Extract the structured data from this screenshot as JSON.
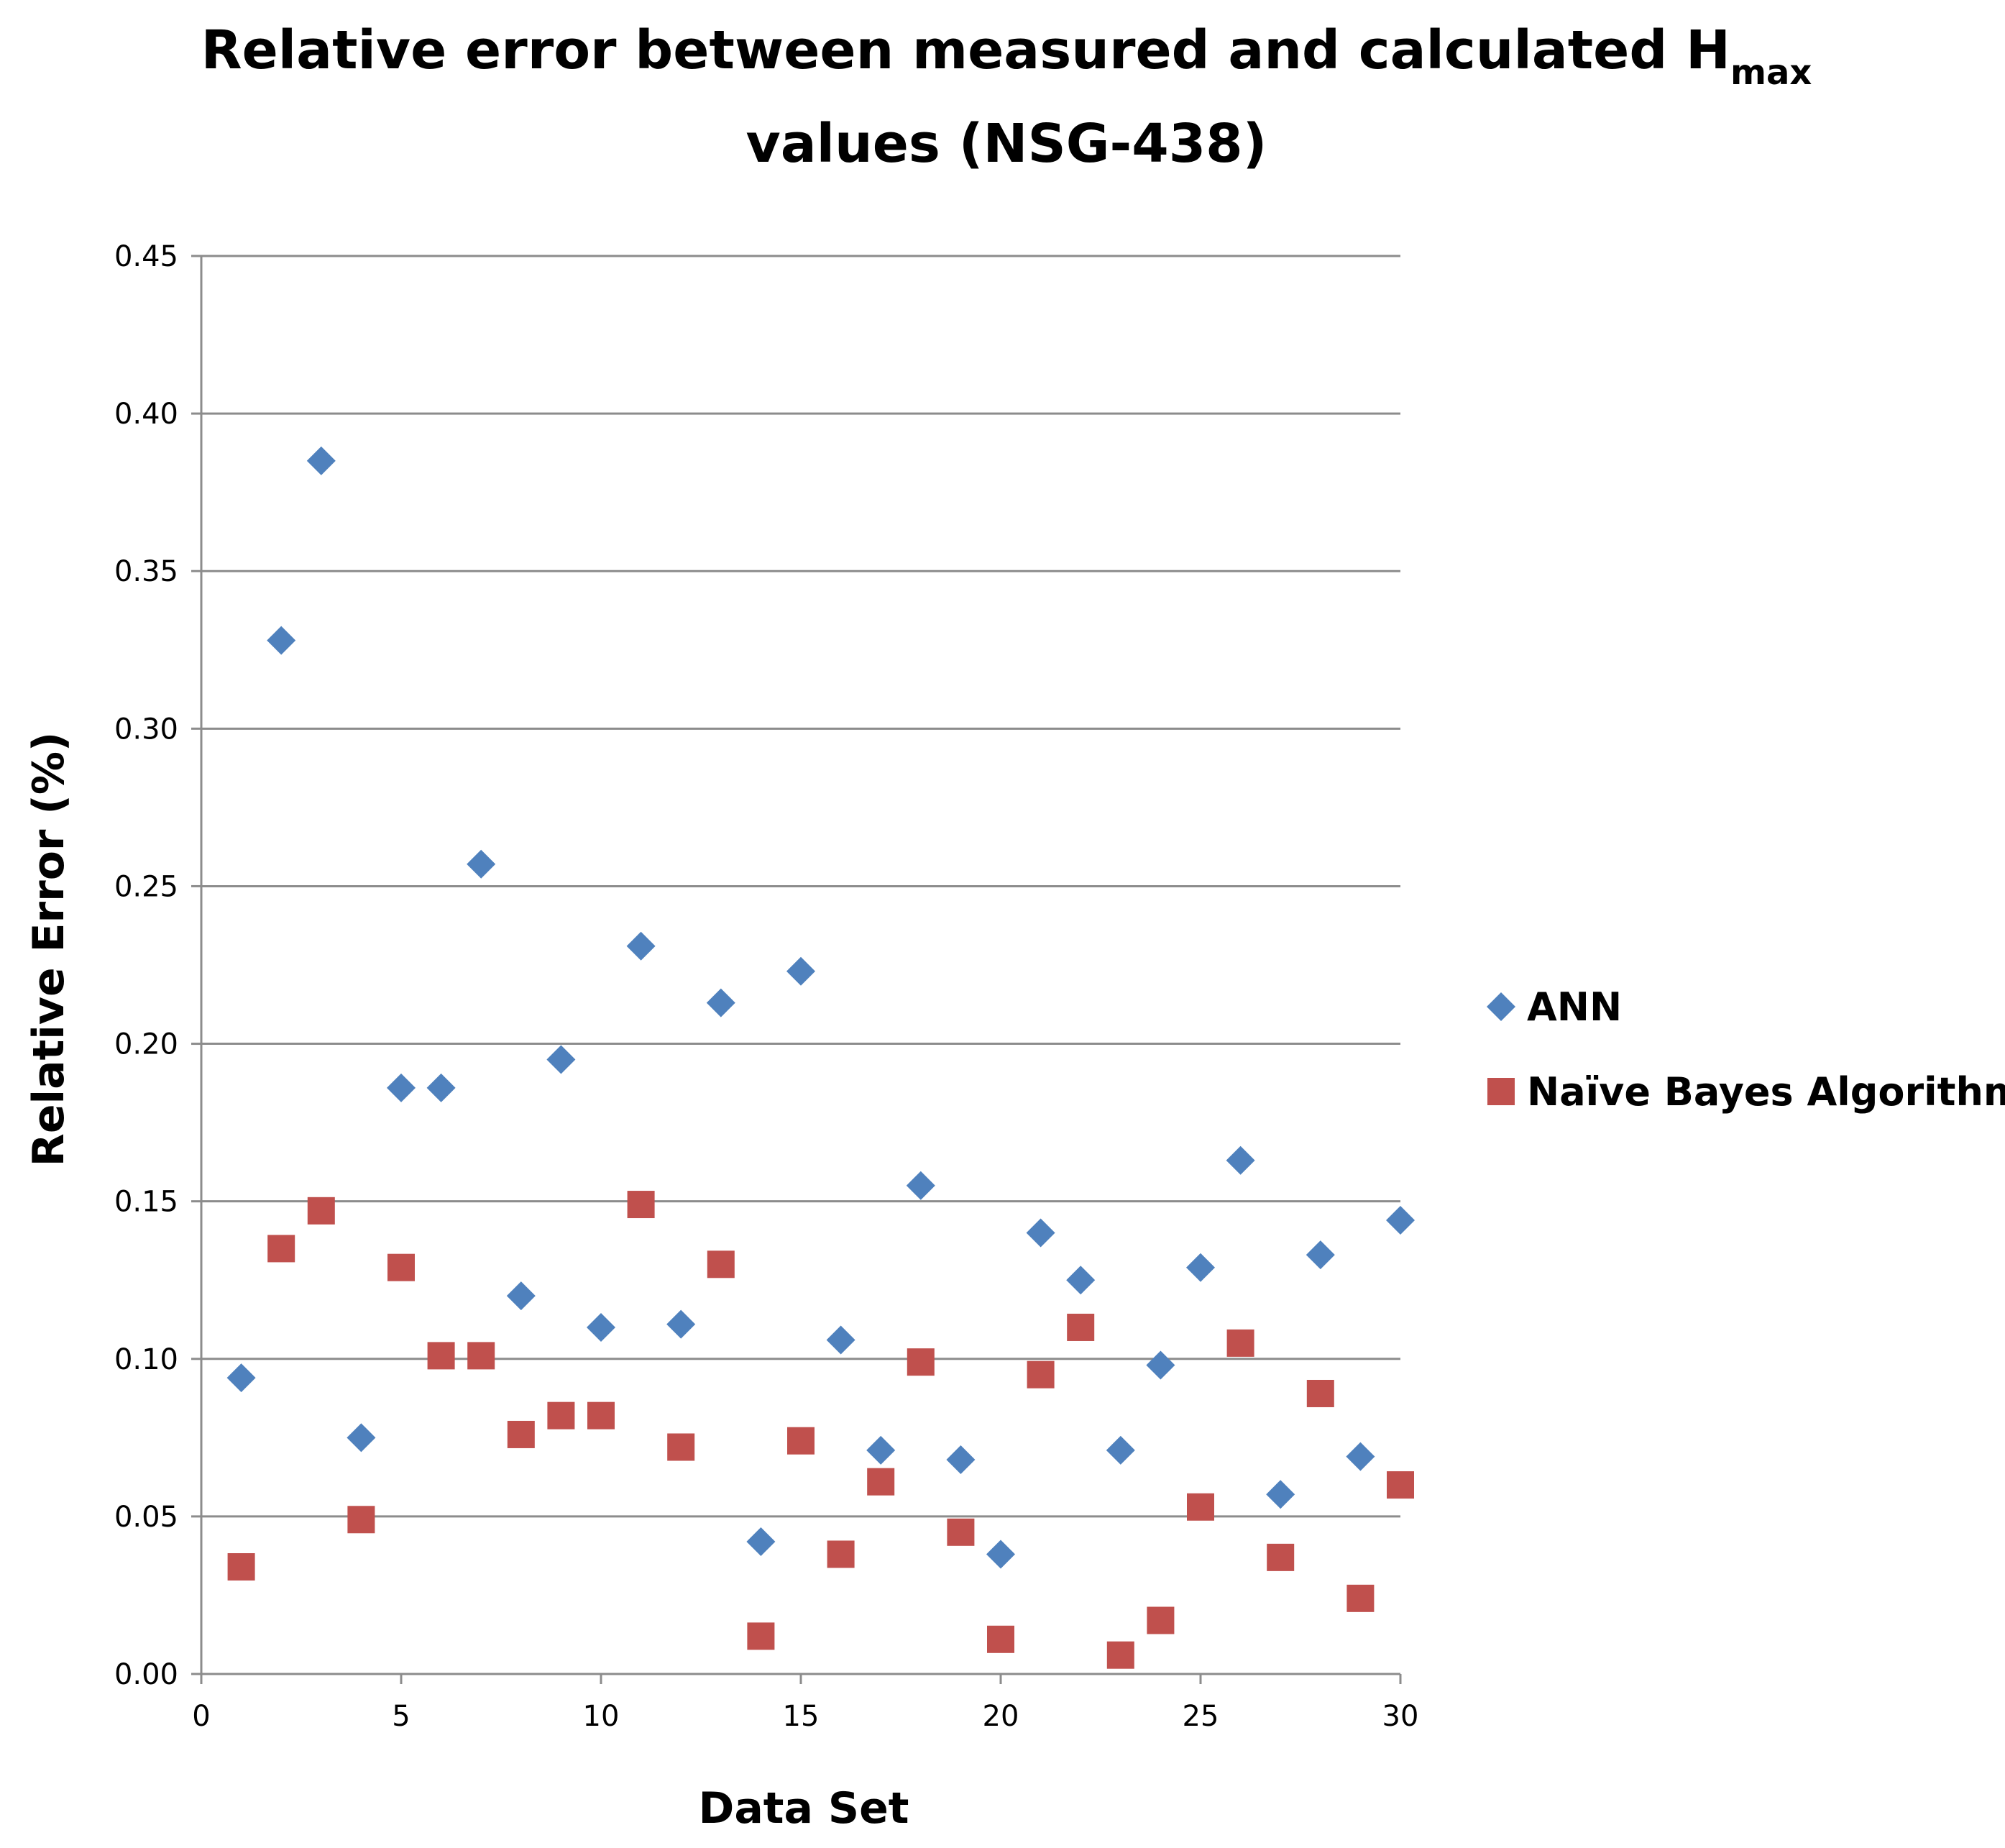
{
  "chart_data": {
    "type": "scatter",
    "title": {
      "main": "Relative error between measured and calculated H",
      "subscript": "max",
      "line2": "values (NSG-438)"
    },
    "xlabel": "Data Set",
    "ylabel": "Relative Error (%)",
    "xlim": [
      0,
      30
    ],
    "ylim": [
      0,
      0.45
    ],
    "xticks": [
      0,
      5,
      10,
      15,
      20,
      25,
      30
    ],
    "xtick_labels": [
      "0",
      "5",
      "10",
      "15",
      "20",
      "25",
      "30"
    ],
    "yticks": [
      0,
      0.05,
      0.1,
      0.15,
      0.2,
      0.25,
      0.3,
      0.35,
      0.4,
      0.45
    ],
    "ytick_labels": [
      "0.00",
      "0.05",
      "0.10",
      "0.15",
      "0.20",
      "0.25",
      "0.30",
      "0.35",
      "0.40",
      "0.45"
    ],
    "grid": "horizontal",
    "legend_position": "right",
    "series": [
      {
        "name": "ANN",
        "marker": "diamond",
        "color": "#4f81bd",
        "x": [
          1,
          2,
          3,
          4,
          5,
          6,
          7,
          8,
          9,
          10,
          11,
          12,
          13,
          14,
          15,
          16,
          17,
          18,
          19,
          20,
          21,
          22,
          23,
          24,
          25,
          26,
          27,
          28,
          29,
          30
        ],
        "y": [
          0.094,
          0.328,
          0.385,
          0.075,
          0.186,
          0.186,
          0.257,
          0.12,
          0.195,
          0.11,
          0.231,
          0.111,
          0.213,
          0.042,
          0.223,
          0.106,
          0.071,
          0.155,
          0.068,
          0.038,
          0.14,
          0.125,
          0.071,
          0.098,
          0.129,
          0.163,
          0.057,
          0.133,
          0.069,
          0.144
        ]
      },
      {
        "name": "Naïve Bayes Algorithm",
        "marker": "square",
        "color": "#c0504d",
        "x": [
          1,
          2,
          3,
          4,
          5,
          6,
          7,
          8,
          9,
          10,
          11,
          12,
          13,
          14,
          15,
          16,
          17,
          18,
          19,
          20,
          21,
          22,
          23,
          24,
          25,
          26,
          27,
          28,
          29,
          30
        ],
        "y": [
          0.034,
          0.135,
          0.147,
          0.049,
          0.129,
          0.101,
          0.101,
          0.076,
          0.082,
          0.082,
          0.149,
          0.072,
          0.13,
          0.012,
          0.074,
          0.038,
          0.061,
          0.099,
          0.045,
          0.011,
          0.095,
          0.11,
          0.006,
          0.017,
          0.053,
          0.105,
          0.037,
          0.089,
          0.024,
          0.06
        ]
      }
    ]
  }
}
